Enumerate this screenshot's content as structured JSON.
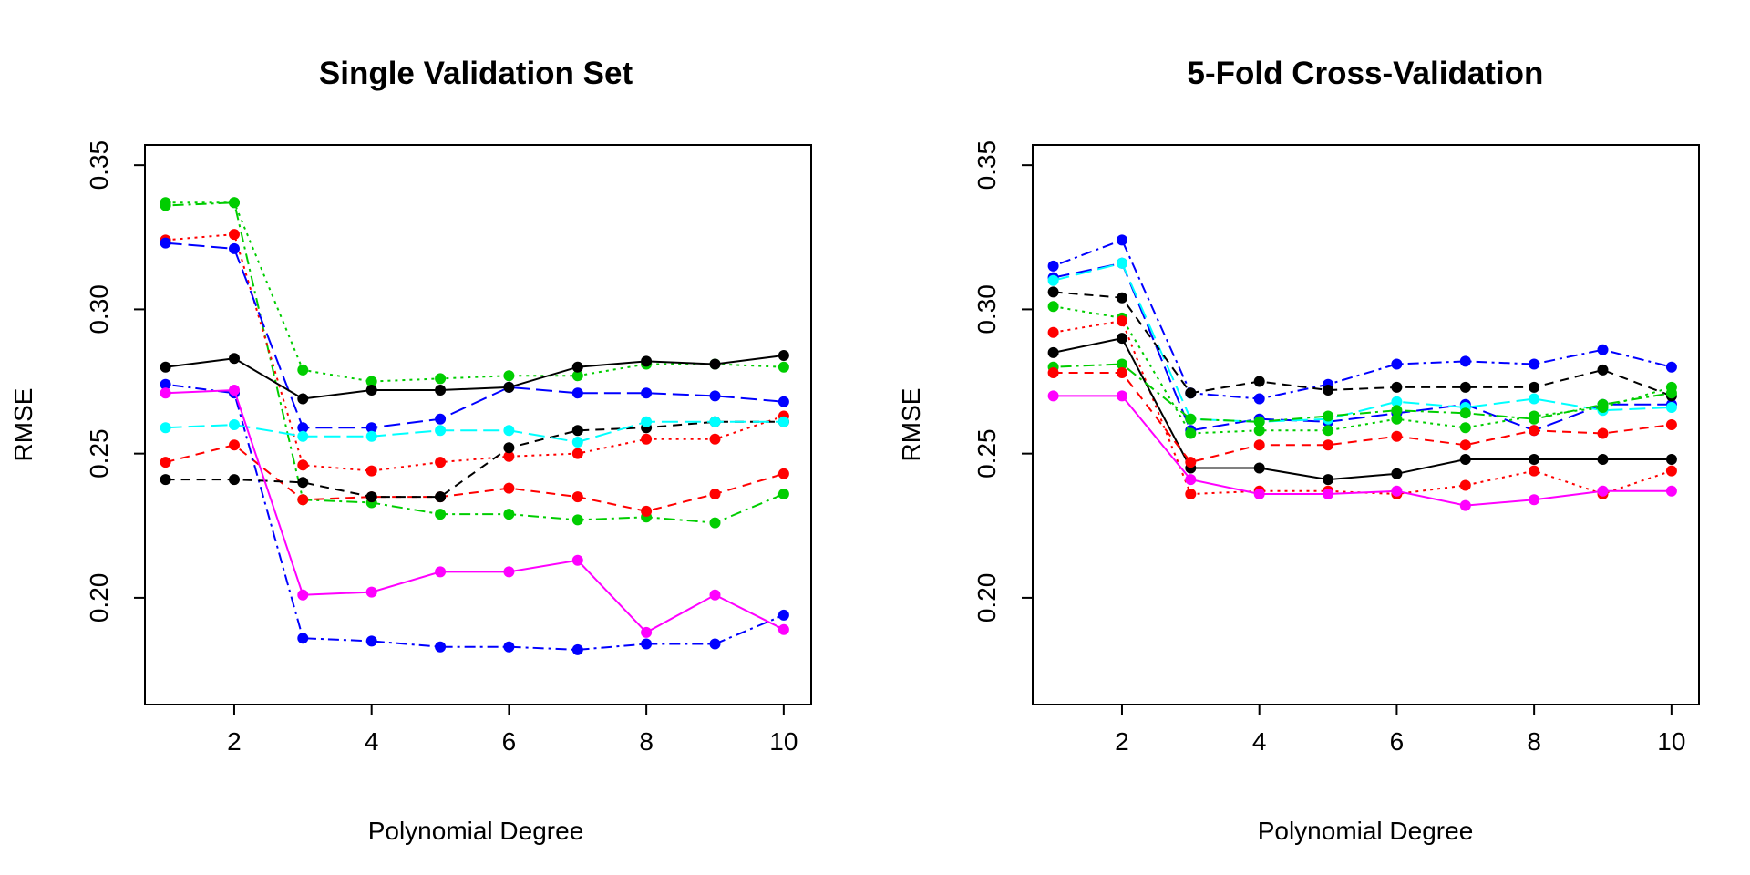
{
  "chart_data": [
    {
      "type": "line",
      "title": "Single Validation Set",
      "xlabel": "Polynomial Degree",
      "ylabel": "RMSE",
      "x": [
        1,
        2,
        3,
        4,
        5,
        6,
        7,
        8,
        9,
        10
      ],
      "xlim": [
        0.7,
        10.4
      ],
      "ylim": [
        0.163,
        0.357
      ],
      "xticks": [
        2,
        4,
        6,
        8,
        10
      ],
      "yticks": [
        0.2,
        0.25,
        0.3,
        0.35
      ],
      "ytick_labels": [
        "0.20",
        "0.25",
        "0.30",
        "0.35"
      ],
      "grid": false,
      "series": [
        {
          "color": "#00CD00",
          "style": "dotted",
          "values": [
            0.337,
            0.337,
            0.279,
            0.275,
            0.276,
            0.277,
            0.277,
            0.281,
            0.281,
            0.28
          ]
        },
        {
          "color": "#00CD00",
          "style": "dotdash",
          "values": [
            0.336,
            0.337,
            0.234,
            0.233,
            0.229,
            0.229,
            0.227,
            0.228,
            0.226,
            0.236
          ]
        },
        {
          "color": "#FF0000",
          "style": "dotted",
          "values": [
            0.324,
            0.326,
            0.246,
            0.244,
            0.247,
            0.249,
            0.25,
            0.255,
            0.255,
            0.263
          ]
        },
        {
          "color": "#FF0000",
          "style": "dashed",
          "values": [
            0.247,
            0.253,
            0.234,
            0.235,
            0.235,
            0.238,
            0.235,
            0.23,
            0.236,
            0.243
          ]
        },
        {
          "color": "#0000FF",
          "style": "longdash",
          "values": [
            0.323,
            0.321,
            0.259,
            0.259,
            0.262,
            0.273,
            0.271,
            0.271,
            0.27,
            0.268
          ]
        },
        {
          "color": "#0000FF",
          "style": "dotdash",
          "values": [
            0.274,
            0.271,
            0.186,
            0.185,
            0.183,
            0.183,
            0.182,
            0.184,
            0.184,
            0.194
          ]
        },
        {
          "color": "#000000",
          "style": "solid",
          "values": [
            0.28,
            0.283,
            0.269,
            0.272,
            0.272,
            0.273,
            0.28,
            0.282,
            0.281,
            0.284
          ]
        },
        {
          "color": "#000000",
          "style": "dashed",
          "values": [
            0.241,
            0.241,
            0.24,
            0.235,
            0.235,
            0.252,
            0.258,
            0.259,
            0.261,
            0.261
          ]
        },
        {
          "color": "#00FFFF",
          "style": "longdash",
          "values": [
            0.259,
            0.26,
            0.256,
            0.256,
            0.258,
            0.258,
            0.254,
            0.261,
            0.261,
            0.261
          ]
        },
        {
          "color": "#FF00FF",
          "style": "solid",
          "values": [
            0.271,
            0.272,
            0.201,
            0.202,
            0.209,
            0.209,
            0.213,
            0.188,
            0.201,
            0.189
          ]
        }
      ]
    },
    {
      "type": "line",
      "title": "5-Fold Cross-Validation",
      "xlabel": "Polynomial Degree",
      "ylabel": "RMSE",
      "x": [
        1,
        2,
        3,
        4,
        5,
        6,
        7,
        8,
        9,
        10
      ],
      "xlim": [
        0.7,
        10.4
      ],
      "ylim": [
        0.163,
        0.357
      ],
      "xticks": [
        2,
        4,
        6,
        8,
        10
      ],
      "yticks": [
        0.2,
        0.25,
        0.3,
        0.35
      ],
      "ytick_labels": [
        "0.20",
        "0.25",
        "0.30",
        "0.35"
      ],
      "grid": false,
      "series": [
        {
          "color": "#0000FF",
          "style": "dotdash",
          "values": [
            0.315,
            0.324,
            0.271,
            0.269,
            0.274,
            0.281,
            0.282,
            0.281,
            0.286,
            0.28
          ]
        },
        {
          "color": "#0000FF",
          "style": "longdash",
          "values": [
            0.311,
            0.316,
            0.258,
            0.262,
            0.261,
            0.264,
            0.267,
            0.258,
            0.267,
            0.267
          ]
        },
        {
          "color": "#00FFFF",
          "style": "longdash",
          "values": [
            0.31,
            0.316,
            0.262,
            0.261,
            0.262,
            0.268,
            0.266,
            0.269,
            0.265,
            0.266
          ]
        },
        {
          "color": "#000000",
          "style": "dashed",
          "values": [
            0.306,
            0.304,
            0.271,
            0.275,
            0.272,
            0.273,
            0.273,
            0.273,
            0.279,
            0.27
          ]
        },
        {
          "color": "#00CD00",
          "style": "dotted",
          "values": [
            0.301,
            0.297,
            0.257,
            0.258,
            0.258,
            0.262,
            0.259,
            0.263,
            0.266,
            0.273
          ]
        },
        {
          "color": "#FF0000",
          "style": "dotted",
          "values": [
            0.292,
            0.296,
            0.236,
            0.237,
            0.237,
            0.236,
            0.239,
            0.244,
            0.236,
            0.244
          ]
        },
        {
          "color": "#000000",
          "style": "solid",
          "values": [
            0.285,
            0.29,
            0.245,
            0.245,
            0.241,
            0.243,
            0.248,
            0.248,
            0.248,
            0.248
          ]
        },
        {
          "color": "#00CD00",
          "style": "dotdash",
          "values": [
            0.28,
            0.281,
            0.262,
            0.261,
            0.263,
            0.265,
            0.264,
            0.262,
            0.267,
            0.271
          ]
        },
        {
          "color": "#FF0000",
          "style": "dashed",
          "values": [
            0.278,
            0.278,
            0.247,
            0.253,
            0.253,
            0.256,
            0.253,
            0.258,
            0.257,
            0.26
          ]
        },
        {
          "color": "#FF00FF",
          "style": "solid",
          "values": [
            0.27,
            0.27,
            0.241,
            0.236,
            0.236,
            0.237,
            0.232,
            0.234,
            0.237,
            0.237
          ]
        }
      ]
    }
  ]
}
